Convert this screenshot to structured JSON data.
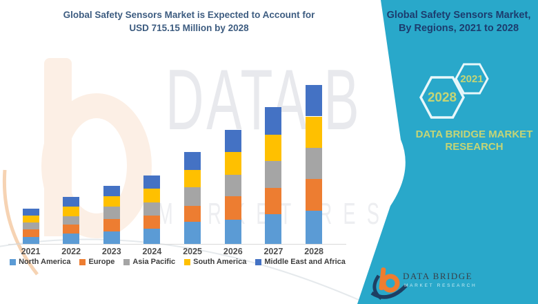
{
  "header": {
    "title_line1": "Global Safety Sensors Market is Expected to Account for",
    "title_line2": "USD 715.15 Million by 2028"
  },
  "sidebar": {
    "title_line1": "Global Safety Sensors Market,",
    "title_line2": "By Regions, 2021 to 2028",
    "hexagons": [
      {
        "label": "2021"
      },
      {
        "label": "2028"
      }
    ],
    "brand_line1": "DATA BRIDGE MARKET",
    "brand_line2": "RESEARCH",
    "background_color": "#29a8ca",
    "accent_text_color": "#c5d575",
    "title_color": "#1c3c6e"
  },
  "footer_logo": {
    "name": "DATA BRIDGE",
    "subtitle": "MARKET RESEARCH"
  },
  "watermark": {
    "text_large": "DATA B",
    "text_spaced": "MARKET RESE"
  },
  "chart_data": {
    "type": "bar",
    "stacked": true,
    "title": "Global Safety Sensors Market is Expected to Account for USD 715.15 Million by 2028",
    "xlabel": "",
    "ylabel": "",
    "value_unit": "USD Million",
    "categories": [
      "2021",
      "2022",
      "2023",
      "2024",
      "2025",
      "2026",
      "2027",
      "2028"
    ],
    "series": [
      {
        "name": "North America",
        "color": "#5B9BD5",
        "values": [
          31,
          47,
          56,
          68,
          98,
          108,
          133,
          150.15
        ]
      },
      {
        "name": "Europe",
        "color": "#ED7D31",
        "values": [
          33,
          40,
          55,
          61,
          74,
          105,
          120,
          141
        ]
      },
      {
        "name": "Asia Pacific",
        "color": "#A5A5A5",
        "values": [
          32,
          36,
          56,
          57,
          83,
          98,
          120,
          140
        ]
      },
      {
        "name": "South America",
        "color": "#FFC000",
        "values": [
          33,
          46,
          46,
          62,
          77,
          102,
          118,
          142
        ]
      },
      {
        "name": "Middle East and Africa",
        "color": "#4472C4",
        "values": [
          31,
          41,
          49,
          61,
          80,
          99,
          123,
          142
        ]
      }
    ],
    "totals": [
      160,
      210,
      262,
      309,
      412,
      512,
      614,
      715.15
    ],
    "ylim": [
      0,
      750
    ],
    "y_axis_visible": false,
    "gridlines": false,
    "legend_position": "bottom"
  }
}
